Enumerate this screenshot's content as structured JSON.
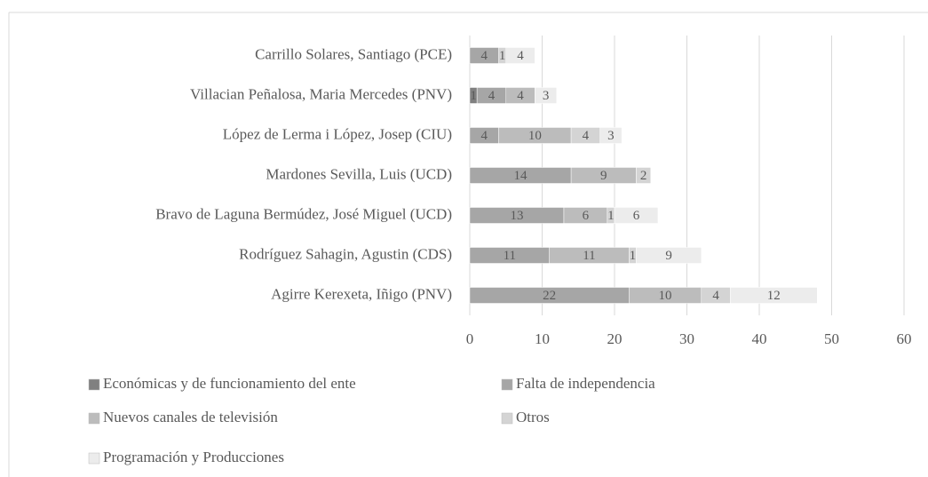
{
  "chart_data": {
    "type": "bar",
    "orientation": "horizontal",
    "stacked": true,
    "categories": [
      "Carrillo Solares, Santiago (PCE)",
      "Villacian Peñalosa, Maria Mercedes (PNV)",
      "López de Lerma i López, Josep (CIU)",
      "Mardones Sevilla, Luis (UCD)",
      "Bravo de Laguna Bermúdez, José Miguel (UCD)",
      "Rodríguez Sahagin, Agustin (CDS)",
      "Agirre Kerexeta, Iñigo (PNV)"
    ],
    "series": [
      {
        "name": "Económicas y de funcionamiento del ente",
        "color": "#808080",
        "values": [
          null,
          1,
          null,
          null,
          null,
          null,
          null
        ]
      },
      {
        "name": "Falta de independencia",
        "color": "#a6a6a6",
        "values": [
          4,
          4,
          4,
          14,
          13,
          11,
          22
        ]
      },
      {
        "name": "Nuevos canales de televisión",
        "color": "#bcbcbc",
        "values": [
          null,
          4,
          10,
          9,
          6,
          11,
          10
        ]
      },
      {
        "name": "Otros",
        "color": "#d4d4d4",
        "values": [
          1,
          null,
          4,
          2,
          1,
          1,
          4
        ]
      },
      {
        "name": "Programación y Producciones",
        "color": "#ececec",
        "values": [
          4,
          3,
          3,
          null,
          6,
          9,
          12
        ]
      }
    ],
    "xlim": [
      0,
      60
    ],
    "xticks": [
      0,
      10,
      20,
      30,
      40,
      50,
      60
    ],
    "grid": true,
    "legend": "bottom"
  }
}
